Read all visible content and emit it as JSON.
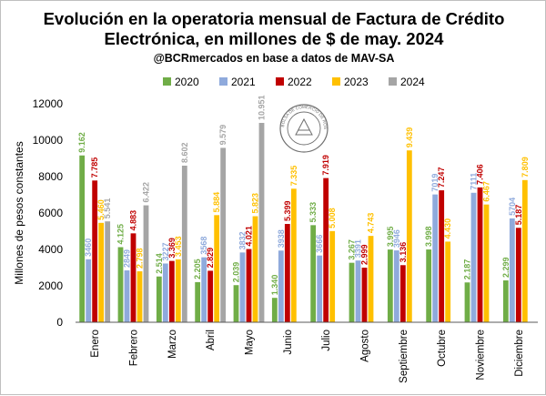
{
  "chart_data": {
    "type": "bar",
    "title_line1": "Evolución en la operatoria mensual de Factura de Crédito",
    "title_line2": "Electrónica, en millones de $ de may. 2024",
    "subtitle": "@BCRmercados en base a datos de MAV-SA",
    "ylabel": "Millones de pesos constantes",
    "xlabel": "",
    "ylim": [
      0,
      12000
    ],
    "yticks": [
      0,
      2000,
      4000,
      6000,
      8000,
      10000,
      12000
    ],
    "ytick_labels": [
      "0",
      "2000",
      "4000",
      "6000",
      "8000",
      "10000",
      "12000"
    ],
    "grid": false,
    "legend_position": "top",
    "categories": [
      "Enero",
      "Febrero",
      "Marzo",
      "Abril",
      "Mayo",
      "Junio",
      "Julio",
      "Agosto",
      "Septiembre",
      "Octubre",
      "Noviembre",
      "Diciembre"
    ],
    "series": [
      {
        "name": "2020",
        "color": "#70ad47",
        "values": [
          9162,
          4125,
          2514,
          2205,
          2039,
          1340,
          5333,
          3267,
          3995,
          3998,
          2187,
          2299
        ],
        "labels": [
          "9.162",
          "4.125",
          "2.514",
          "2.205",
          "2.039",
          "1.340",
          "5.333",
          "3.267",
          "3.995",
          "3.998",
          "2.187",
          "2.299"
        ]
      },
      {
        "name": "2021",
        "color": "#8faadc",
        "values": [
          3460,
          2849,
          3227,
          3568,
          3832,
          3938,
          3666,
          3391,
          3946,
          7019,
          7111,
          5704
        ],
        "labels": [
          "3460",
          "2849",
          "3227",
          "3568",
          "3832",
          "3938",
          "3666",
          "3391",
          "3946",
          "7019",
          "7111",
          "5704"
        ]
      },
      {
        "name": "2022",
        "color": "#c00000",
        "values": [
          7785,
          4883,
          3369,
          2829,
          4021,
          5399,
          7919,
          2999,
          3136,
          7247,
          7406,
          5187
        ],
        "labels": [
          "7.785",
          "4.883",
          "3.369",
          "2.829",
          "4.021",
          "5.399",
          "7.919",
          "2.999",
          "3.136",
          "7.247",
          "7.406",
          "5.187"
        ]
      },
      {
        "name": "2023",
        "color": "#ffc000",
        "values": [
          5460,
          2798,
          3453,
          5884,
          5823,
          7335,
          5008,
          4743,
          9439,
          4430,
          6467,
          7809
        ],
        "labels": [
          "5.460",
          "2.798",
          "3.453",
          "5.884",
          "5.823",
          "7.335",
          "5.008",
          "4.743",
          "9.439",
          "4.430",
          "6.467",
          "7.809"
        ]
      },
      {
        "name": "2024",
        "color": "#a5a5a5",
        "values": [
          5541,
          6422,
          8602,
          9579,
          10951,
          null,
          null,
          null,
          null,
          null,
          null,
          null
        ],
        "labels": [
          "5.541",
          "6.422",
          "8.602",
          "9.579",
          "10.951",
          "",
          "",
          "",
          "",
          "",
          "",
          ""
        ]
      }
    ]
  },
  "watermark": "BOLSA DE COMERCIO DE ROSARIO"
}
